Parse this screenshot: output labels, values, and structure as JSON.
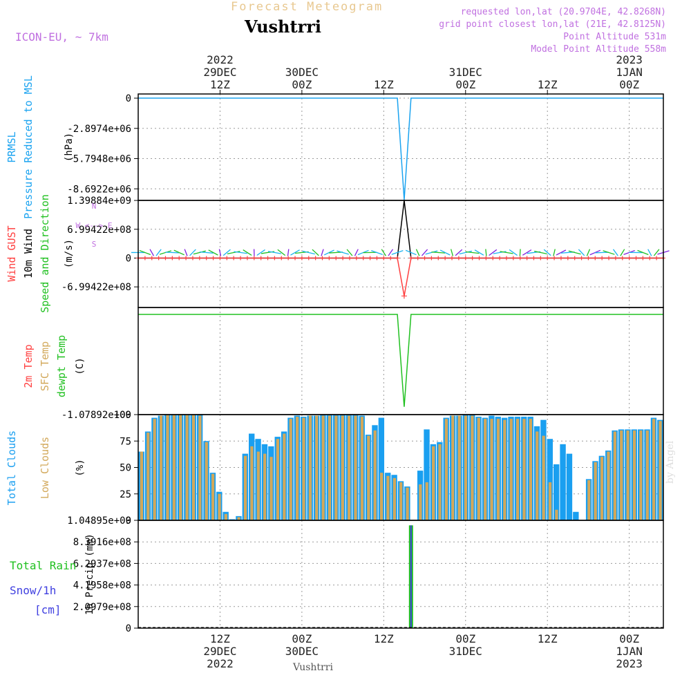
{
  "header": {
    "product_title": "Forecast Meteogram",
    "station": "Vushtrri",
    "model": "ICON-EU, ~ 7km",
    "requested": "requested lon,lat (20.9704E, 42.8268N)",
    "grid_point": "grid point closest lon,lat (21E, 42.8125N)",
    "point_altitude": "Point Altitude 531m",
    "model_altitude": "Model Point Altitude 558m"
  },
  "footer": {
    "station": "Vushtrri",
    "credit": "by Angel"
  },
  "colors": {
    "pressure": "#1aa3f0",
    "gust": "#ff4040",
    "wind": "#000000",
    "temp_dew": "#20c020",
    "clouds_total": "#1a9ff0",
    "clouds_low": "#d2a85a",
    "rain": "#20c020",
    "snow": "#4040e0",
    "grid": "#999999"
  },
  "time_axis": {
    "top_ticks": [
      {
        "line1": "2022",
        "line2": "29DEC",
        "line3": "12Z",
        "hour": 12
      },
      {
        "line1": "",
        "line2": "30DEC",
        "line3": "00Z",
        "hour": 24
      },
      {
        "line1": "",
        "line2": "",
        "line3": "12Z",
        "hour": 36
      },
      {
        "line1": "",
        "line2": "31DEC",
        "line3": "00Z",
        "hour": 48
      },
      {
        "line1": "",
        "line2": "",
        "line3": "12Z",
        "hour": 60
      },
      {
        "line1": "2023",
        "line2": "1JAN",
        "line3": "00Z",
        "hour": 72
      }
    ],
    "bottom_ticks": [
      {
        "line1": "12Z",
        "line2": "29DEC",
        "line3": "2022",
        "hour": 12
      },
      {
        "line1": "00Z",
        "line2": "30DEC",
        "line3": "",
        "hour": 24
      },
      {
        "line1": "12Z",
        "line2": "",
        "line3": "",
        "hour": 36
      },
      {
        "line1": "00Z",
        "line2": "31DEC",
        "line3": "",
        "hour": 48
      },
      {
        "line1": "12Z",
        "line2": "",
        "line3": "",
        "hour": 60
      },
      {
        "line1": "00Z",
        "line2": "1JAN",
        "line3": "2023",
        "hour": 72
      }
    ],
    "range_hours": [
      0,
      77
    ]
  },
  "chart_data": [
    {
      "type": "line",
      "panel": "pressure",
      "ylabel_lines": [
        "PRMSL",
        "Pressure Reduced to MSL"
      ],
      "unit": "(hPa)",
      "yticks": [
        "0",
        "-2.8974e+06",
        "-5.7948e+06",
        "-8.6922e+06"
      ],
      "ylim": [
        -9800000,
        400000
      ],
      "x_hours": [
        0,
        38,
        39,
        40,
        77
      ],
      "values": [
        0,
        0,
        -9750000,
        0,
        0
      ]
    },
    {
      "type": "line",
      "panel": "wind",
      "ylabel_lines": [
        "Wind GUST",
        "10m Wind",
        "Speed and Direction"
      ],
      "unit": "(m/s)",
      "compass": [
        "N",
        "W <--> E",
        "S"
      ],
      "yticks": [
        "1.39884e+09",
        "6.99422e+08",
        "0",
        "-6.99422e+08"
      ],
      "ylim": [
        -1200000000,
        1400000000
      ],
      "series": [
        {
          "name": "10m Wind",
          "x_hours": [
            0,
            38,
            39,
            40,
            77
          ],
          "values": [
            0,
            0,
            1398840000,
            0,
            0
          ]
        },
        {
          "name": "Wind GUST",
          "x_hours": [
            0,
            38,
            39,
            40,
            77
          ],
          "values": [
            0,
            0,
            -920000000,
            0,
            0
          ]
        }
      ]
    },
    {
      "type": "line",
      "panel": "temperature",
      "ylabel_lines": [
        "2m Temp",
        "SFC Temp",
        "dewpt Temp"
      ],
      "unit": "(C)",
      "yticks": [
        "-1.07892e+09"
      ],
      "ylim": [
        -1078920000,
        0
      ],
      "x_hours": [
        0,
        38,
        39,
        40,
        77
      ],
      "values": [
        0,
        0,
        -1000000000,
        0,
        0
      ]
    },
    {
      "type": "bar",
      "panel": "clouds",
      "ylabel_lines": [
        "Total Clouds",
        "Low Clouds"
      ],
      "unit": "(%)",
      "yticks": [
        "0",
        "25",
        "50",
        "75",
        "100"
      ],
      "ylim": [
        0,
        100
      ],
      "series": [
        {
          "name": "Total Clouds",
          "values": [
            65,
            84,
            97,
            99,
            100,
            100,
            100,
            100,
            100,
            100,
            75,
            45,
            27,
            8,
            1,
            4,
            63,
            82,
            77,
            72,
            70,
            79,
            84,
            97,
            99,
            98,
            99,
            99,
            100,
            100,
            100,
            100,
            100,
            100,
            99,
            81,
            90,
            97,
            45,
            43,
            37,
            32,
            0,
            47,
            86,
            72,
            74,
            97,
            99,
            99,
            100,
            100,
            98,
            97,
            99,
            98,
            97,
            98,
            98,
            98,
            98,
            89,
            95,
            77,
            53,
            72,
            63,
            8,
            0,
            39,
            56,
            61,
            66,
            85,
            86,
            86,
            86,
            86,
            86,
            97,
            95
          ]
        },
        {
          "name": "Low Clouds",
          "values": [
            65,
            83,
            96,
            99,
            100,
            100,
            100,
            100,
            100,
            99,
            74,
            44,
            25,
            6,
            0,
            3,
            61,
            70,
            65,
            63,
            60,
            77,
            82,
            96,
            98,
            97,
            99,
            99,
            99,
            99,
            99,
            99,
            99,
            99,
            98,
            80,
            85,
            45,
            42,
            40,
            36,
            31,
            0,
            34,
            36,
            70,
            72,
            96,
            99,
            99,
            99,
            99,
            97,
            96,
            96,
            96,
            95,
            96,
            96,
            96,
            96,
            84,
            80,
            36,
            10,
            0,
            0,
            0,
            0,
            38,
            55,
            60,
            65,
            84,
            85,
            85,
            85,
            85,
            85,
            96,
            94
          ]
        }
      ]
    },
    {
      "type": "bar",
      "panel": "precipitation",
      "ylabel_lines": [
        "Total Rain",
        "Snow/1h",
        "[cm]"
      ],
      "unit": "1h Precip (mm)",
      "yticks": [
        "0",
        "2.0979e+08",
        "4.1958e+08",
        "6.2937e+08",
        "8.3916e+08",
        "1.04895e+09"
      ],
      "ylim": [
        0,
        1048950000
      ],
      "series": [
        {
          "name": "Total Rain",
          "x_hours": [
            40
          ],
          "values": [
            1000000000
          ]
        },
        {
          "name": "Snow/1h",
          "x_hours": [
            40
          ],
          "values": [
            1000000000
          ]
        }
      ]
    }
  ]
}
